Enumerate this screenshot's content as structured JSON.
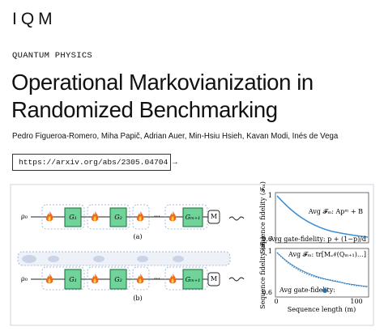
{
  "header": {
    "logo": "IQM",
    "category": "QUANTUM PHYSICS",
    "title": [
      "Operational Markovianization in",
      "Randomized Benchmarking"
    ],
    "authors": "Pedro Figueroa-Romero, Miha Papič, Adrian Auer, Min-Hsiu Hsieh, Kavan Modi, Inés de Vega",
    "link": "https://arxiv.org/abs/2305.04704 →"
  },
  "figure": {
    "circuit_a": {
      "label": "(a)",
      "state": "ρ₀",
      "measure": "M",
      "gates": [
        "G₁",
        "G₂",
        "Gₘ₊₁"
      ]
    },
    "circuit_b": {
      "label": "(b)",
      "state": "ρ₀",
      "measure": "M",
      "gates": [
        "G₁",
        "G₂",
        "Gₘ₊₁"
      ]
    },
    "plot_top": {
      "y_label": "Sequence fidelity (𝓕ₘ)",
      "y_top": "1",
      "y_bottom": "0.6",
      "fit": "Avg 𝓕ₘ: Apᵐ + B",
      "fidelity": "Avg gate-fidelity: p + (1−p)/d"
    },
    "plot_bottom": {
      "y_label": "Sequence fidelity (𝓕ₘ)",
      "y_top": "1",
      "y_bottom": "0.6",
      "fit": "Avg 𝓕ₘ: tr[M𝒩(Qₘ₊₁)…]",
      "fidelity": "Avg gate-fidelity:",
      "x_start": "0",
      "x_end": "100",
      "x_label": "Sequence length (m)"
    }
  }
}
